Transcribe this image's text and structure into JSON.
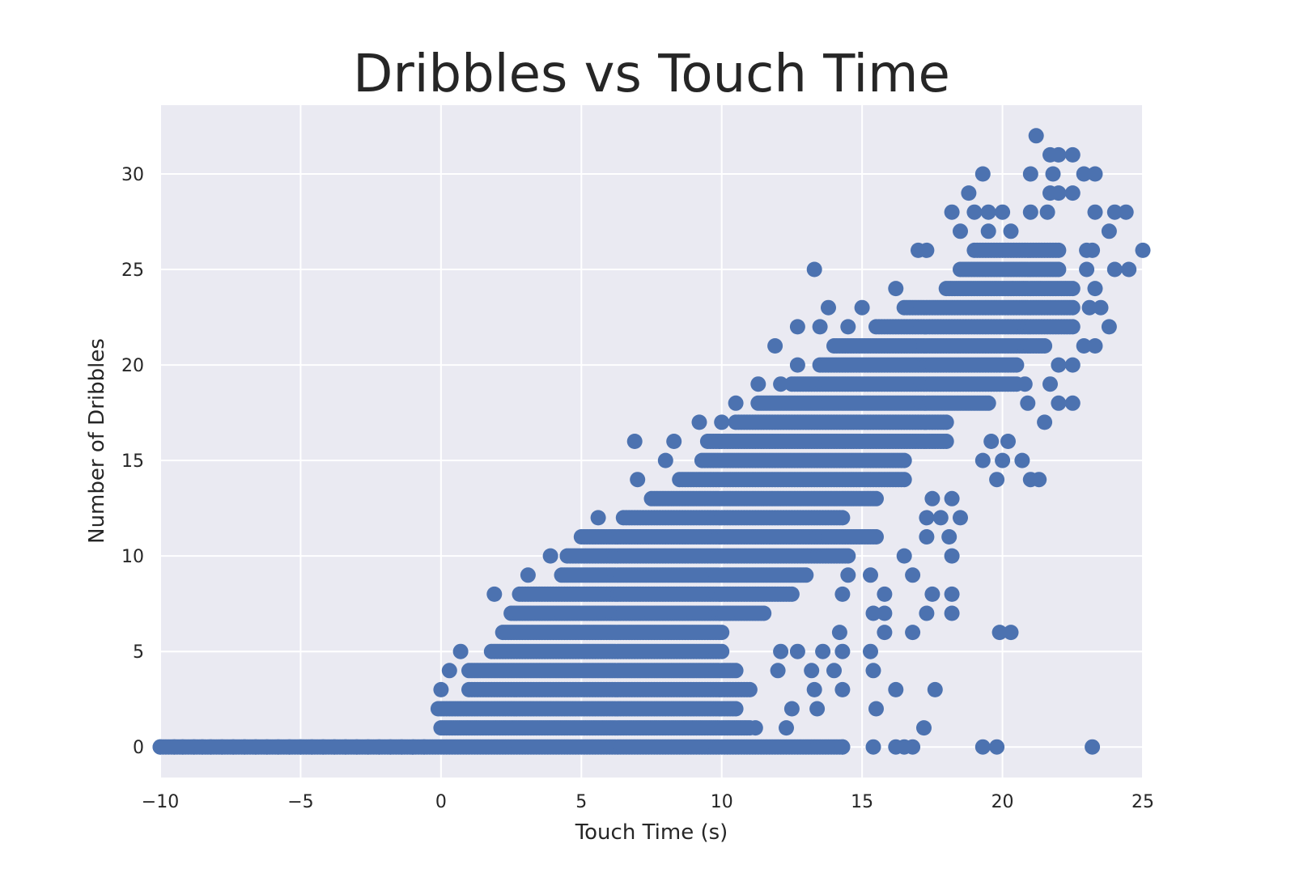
{
  "chart_data": {
    "type": "scatter",
    "title": "Dribbles vs Touch Time",
    "xlabel": "Touch Time (s)",
    "ylabel": "Number of Dribbles",
    "xlim": [
      -10,
      25
    ],
    "ylim": [
      -1.6,
      33.6
    ],
    "xticks": [
      -10,
      -5,
      0,
      5,
      10,
      15,
      20,
      25
    ],
    "xtick_labels": [
      "−10",
      "−5",
      "0",
      "5",
      "10",
      "15",
      "20",
      "25"
    ],
    "yticks": [
      0,
      5,
      10,
      15,
      20,
      25,
      30
    ],
    "ytick_labels": [
      "0",
      "5",
      "10",
      "15",
      "20",
      "25",
      "30"
    ],
    "grid": true,
    "colors": {
      "point": "#4C72B0",
      "background": "#EAEAF2",
      "grid": "#FFFFFF",
      "text": "#262626"
    },
    "series": [
      {
        "bands": [
          {
            "y": 0,
            "from": -10.0,
            "to": 14.3
          },
          {
            "y": 1,
            "from": 0.0,
            "to": 11.0
          },
          {
            "y": 2,
            "from": -0.1,
            "to": 10.5
          },
          {
            "y": 3,
            "from": 1.0,
            "to": 11.0
          },
          {
            "y": 4,
            "from": 1.0,
            "to": 10.5
          },
          {
            "y": 5,
            "from": 1.8,
            "to": 10.0
          },
          {
            "y": 6,
            "from": 2.2,
            "to": 10.0
          },
          {
            "y": 7,
            "from": 2.5,
            "to": 11.5
          },
          {
            "y": 8,
            "from": 2.8,
            "to": 12.5
          },
          {
            "y": 9,
            "from": 4.3,
            "to": 13.0
          },
          {
            "y": 10,
            "from": 4.5,
            "to": 14.5
          },
          {
            "y": 11,
            "from": 5.0,
            "to": 15.5
          },
          {
            "y": 12,
            "from": 6.5,
            "to": 14.3
          },
          {
            "y": 13,
            "from": 7.5,
            "to": 15.5
          },
          {
            "y": 14,
            "from": 8.5,
            "to": 16.5
          },
          {
            "y": 15,
            "from": 9.3,
            "to": 16.5
          },
          {
            "y": 16,
            "from": 9.5,
            "to": 18.0
          },
          {
            "y": 17,
            "from": 10.5,
            "to": 18.0
          },
          {
            "y": 18,
            "from": 11.3,
            "to": 19.5
          },
          {
            "y": 19,
            "from": 12.5,
            "to": 20.5
          },
          {
            "y": 20,
            "from": 13.5,
            "to": 20.5
          },
          {
            "y": 21,
            "from": 14.0,
            "to": 21.5
          },
          {
            "y": 22,
            "from": 15.5,
            "to": 22.5
          },
          {
            "y": 23,
            "from": 16.5,
            "to": 22.5
          },
          {
            "y": 24,
            "from": 18.0,
            "to": 22.5
          },
          {
            "y": 25,
            "from": 18.5,
            "to": 22.0
          },
          {
            "y": 26,
            "from": 19.0,
            "to": 22.0
          }
        ],
        "points": [
          [
            -10.0,
            0
          ],
          [
            -9.5,
            0
          ],
          [
            -9.2,
            0
          ],
          [
            -8.8,
            0
          ],
          [
            -8.5,
            0
          ],
          [
            -8.2,
            0
          ],
          [
            -7.8,
            0
          ],
          [
            -7.4,
            0
          ],
          [
            -7.0,
            0
          ],
          [
            -6.6,
            0
          ],
          [
            -6.2,
            0
          ],
          [
            -5.8,
            0
          ],
          [
            -5.4,
            0
          ],
          [
            -5.0,
            0
          ],
          [
            -4.6,
            0
          ],
          [
            -4.2,
            0
          ],
          [
            -3.8,
            0
          ],
          [
            -3.4,
            0
          ],
          [
            -3.0,
            0
          ],
          [
            -2.6,
            0
          ],
          [
            -2.2,
            0
          ],
          [
            -1.8,
            0
          ],
          [
            -1.4,
            0
          ],
          [
            -1.0,
            0
          ],
          [
            -0.6,
            0
          ],
          [
            14.3,
            0
          ],
          [
            15.4,
            0
          ],
          [
            16.2,
            0
          ],
          [
            16.5,
            0
          ],
          [
            16.8,
            0
          ],
          [
            19.3,
            0
          ],
          [
            19.8,
            0
          ],
          [
            23.2,
            0
          ],
          [
            11.2,
            1
          ],
          [
            12.3,
            1
          ],
          [
            17.2,
            1
          ],
          [
            12.5,
            2
          ],
          [
            13.4,
            2
          ],
          [
            15.5,
            2
          ],
          [
            0.0,
            3
          ],
          [
            13.3,
            3
          ],
          [
            14.3,
            3
          ],
          [
            16.2,
            3
          ],
          [
            17.6,
            3
          ],
          [
            0.3,
            4
          ],
          [
            12.0,
            4
          ],
          [
            13.2,
            4
          ],
          [
            14.0,
            4
          ],
          [
            15.4,
            4
          ],
          [
            0.7,
            5
          ],
          [
            12.1,
            5
          ],
          [
            12.7,
            5
          ],
          [
            13.6,
            5
          ],
          [
            14.3,
            5
          ],
          [
            15.3,
            5
          ],
          [
            14.2,
            6
          ],
          [
            15.8,
            6
          ],
          [
            16.8,
            6
          ],
          [
            19.9,
            6
          ],
          [
            20.3,
            6
          ],
          [
            15.4,
            7
          ],
          [
            15.8,
            7
          ],
          [
            17.3,
            7
          ],
          [
            18.2,
            7
          ],
          [
            1.9,
            8
          ],
          [
            14.3,
            8
          ],
          [
            15.8,
            8
          ],
          [
            17.5,
            8
          ],
          [
            18.2,
            8
          ],
          [
            3.1,
            9
          ],
          [
            14.5,
            9
          ],
          [
            15.3,
            9
          ],
          [
            16.8,
            9
          ],
          [
            3.9,
            10
          ],
          [
            16.5,
            10
          ],
          [
            18.2,
            10
          ],
          [
            17.3,
            11
          ],
          [
            18.1,
            11
          ],
          [
            5.6,
            12
          ],
          [
            17.3,
            12
          ],
          [
            17.8,
            12
          ],
          [
            18.5,
            12
          ],
          [
            17.5,
            13
          ],
          [
            18.2,
            13
          ],
          [
            7.0,
            14
          ],
          [
            19.8,
            14
          ],
          [
            21.0,
            14
          ],
          [
            21.3,
            14
          ],
          [
            8.0,
            15
          ],
          [
            19.3,
            15
          ],
          [
            20.0,
            15
          ],
          [
            20.7,
            15
          ],
          [
            6.9,
            16
          ],
          [
            8.3,
            16
          ],
          [
            19.6,
            16
          ],
          [
            20.2,
            16
          ],
          [
            9.2,
            17
          ],
          [
            10.0,
            17
          ],
          [
            21.5,
            17
          ],
          [
            10.5,
            18
          ],
          [
            20.9,
            18
          ],
          [
            22.0,
            18
          ],
          [
            22.5,
            18
          ],
          [
            11.3,
            19
          ],
          [
            12.1,
            19
          ],
          [
            20.8,
            19
          ],
          [
            21.7,
            19
          ],
          [
            12.7,
            20
          ],
          [
            22.0,
            20
          ],
          [
            22.5,
            20
          ],
          [
            11.9,
            21
          ],
          [
            22.9,
            21
          ],
          [
            23.3,
            21
          ],
          [
            12.7,
            22
          ],
          [
            13.5,
            22
          ],
          [
            14.5,
            22
          ],
          [
            23.8,
            22
          ],
          [
            13.8,
            23
          ],
          [
            15.0,
            23
          ],
          [
            23.1,
            23
          ],
          [
            23.5,
            23
          ],
          [
            16.2,
            24
          ],
          [
            23.3,
            24
          ],
          [
            13.3,
            25
          ],
          [
            23.0,
            25
          ],
          [
            24.0,
            25
          ],
          [
            24.5,
            25
          ],
          [
            17.0,
            26
          ],
          [
            17.3,
            26
          ],
          [
            23.0,
            26
          ],
          [
            23.2,
            26
          ],
          [
            25.0,
            26
          ],
          [
            18.5,
            27
          ],
          [
            19.5,
            27
          ],
          [
            20.3,
            27
          ],
          [
            23.8,
            27
          ],
          [
            18.2,
            28
          ],
          [
            19.0,
            28
          ],
          [
            19.5,
            28
          ],
          [
            20.0,
            28
          ],
          [
            21.0,
            28
          ],
          [
            21.6,
            28
          ],
          [
            23.3,
            28
          ],
          [
            24.0,
            28
          ],
          [
            24.4,
            28
          ],
          [
            18.8,
            29
          ],
          [
            21.7,
            29
          ],
          [
            22.0,
            29
          ],
          [
            22.5,
            29
          ],
          [
            19.3,
            30
          ],
          [
            21.0,
            30
          ],
          [
            21.8,
            30
          ],
          [
            22.9,
            30
          ],
          [
            23.3,
            30
          ],
          [
            21.7,
            31
          ],
          [
            22.0,
            31
          ],
          [
            22.5,
            31
          ],
          [
            21.2,
            32
          ]
        ]
      }
    ]
  }
}
